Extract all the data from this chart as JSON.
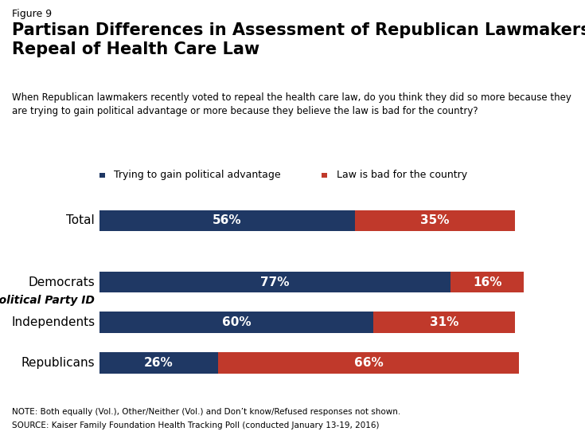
{
  "figure_label": "Figure 9",
  "title": "Partisan Differences in Assessment of Republican Lawmakers’\nRepeal of Health Care Law",
  "subtitle": "When Republican lawmakers recently voted to repeal the health care law, do you think they did so more because they\nare trying to gain political advantage or more because they believe the law is bad for the country?",
  "categories": [
    "Total",
    "Democrats",
    "Independents",
    "Republicans"
  ],
  "blue_values": [
    56,
    77,
    60,
    26
  ],
  "orange_values": [
    35,
    16,
    31,
    66
  ],
  "blue_color": "#1f3864",
  "orange_color": "#c0392b",
  "legend_blue": "Trying to gain political advantage",
  "legend_orange": "Law is bad for the country",
  "section_label": "By Political Party ID",
  "note_line1": "NOTE: Both equally (Vol.), Other/Neither (Vol.) and Don’t know/Refused responses not shown.",
  "note_line2": "SOURCE: Kaiser Family Foundation Health Tracking Poll (conducted January 13-19, 2016)",
  "background_color": "#ffffff",
  "bar_height": 0.55,
  "total_bar_height": 0.55
}
